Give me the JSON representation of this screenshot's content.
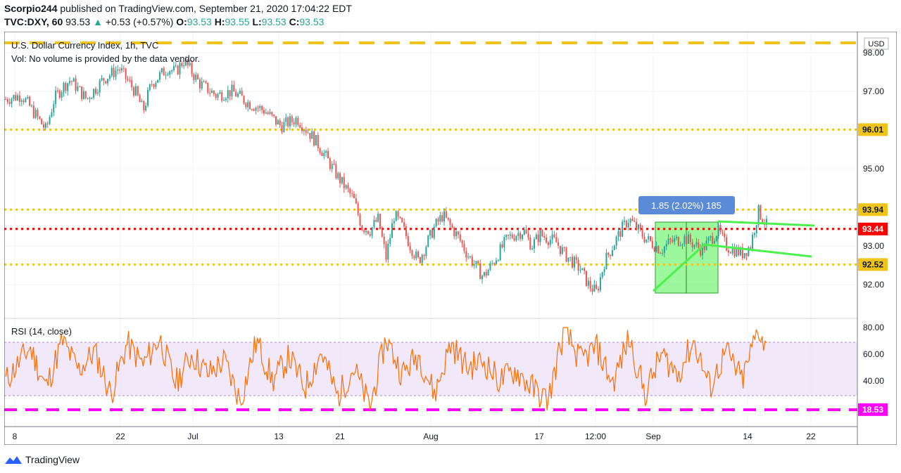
{
  "header": {
    "author": "Scorpio244",
    "published_text": "published on TradingView.com, September 21, 2020 17:04:22 EDT",
    "symbol_line": "TVC:DXY, 60",
    "last": "93.53",
    "change": "+0.53 (+0.57%)",
    "o_label": "O:",
    "o": "93.53",
    "h_label": "H:",
    "h": "93.55",
    "l_label": "L:",
    "l": "93.53",
    "c_label": "C:",
    "c": "93.53"
  },
  "legend": {
    "title": "U.S. Dollar Currency Index, 1h, TVC",
    "vol": "Vol: No volume is provided by the data vendor.",
    "rsi": "RSI (14, close)"
  },
  "currency_badge": "USD",
  "measure_label": "1.85 (2.02%) 185",
  "footer": {
    "brand": "TradingView"
  },
  "colors": {
    "candle_up": "#26a69a",
    "candle_down": "#ef5350",
    "yellow_level": "#f0c419",
    "red_level": "#ff0000",
    "green_trend": "#4cf04c",
    "rsi_line": "#ff6d00",
    "rsi_band": "#e6d6f5",
    "magenta": "#ff00ff"
  },
  "chart_data": [
    {
      "type": "line",
      "title": "U.S. Dollar Currency Index, 1h, TVC",
      "ylim": [
        91.6,
        98.5
      ],
      "y_ticks": [
        98.0,
        97.0,
        95.0,
        93.0,
        92.0
      ],
      "x_tick_labels": [
        "8",
        "22",
        "Jul",
        "13",
        "21",
        "Aug",
        "17",
        "12:00",
        "Sep",
        "14",
        "22"
      ],
      "levels": [
        {
          "value": 98.5,
          "label": "",
          "style": "dashed",
          "color": "yellow"
        },
        {
          "value": 96.01,
          "label": "96.01",
          "style": "dotted",
          "color": "yellow"
        },
        {
          "value": 93.94,
          "label": "93.94",
          "style": "dotted",
          "color": "yellow"
        },
        {
          "value": 93.44,
          "label": "93.44",
          "style": "dotted",
          "color": "red"
        },
        {
          "value": 92.52,
          "label": "92.52",
          "style": "dotted",
          "color": "yellow"
        }
      ],
      "series": [
        {
          "x": [
            0,
            0.02,
            0.04,
            0.05,
            0.06,
            0.07,
            0.08,
            0.1,
            0.12,
            0.14,
            0.16,
            0.17,
            0.18,
            0.2,
            0.21,
            0.22,
            0.24,
            0.26,
            0.28,
            0.3,
            0.32,
            0.34,
            0.36,
            0.38,
            0.39,
            0.41,
            0.43,
            0.44,
            0.45,
            0.46,
            0.47,
            0.48,
            0.49,
            0.5,
            0.51,
            0.53,
            0.54,
            0.56,
            0.57,
            0.59,
            0.6,
            0.62,
            0.64,
            0.65,
            0.66,
            0.68,
            0.69,
            0.71,
            0.72,
            0.73,
            0.74,
            0.75,
            0.76,
            0.77,
            0.79,
            0.81,
            0.82,
            0.84,
            0.86,
            0.88,
            0.89,
            0.9,
            0.91,
            0.92,
            0.93,
            0.94
          ],
          "y": [
            96.8,
            96.9,
            96.3,
            96.0,
            96.8,
            97.1,
            97.3,
            96.8,
            97.3,
            97.6,
            97.0,
            96.5,
            97.2,
            97.6,
            97.5,
            97.8,
            97.2,
            96.9,
            97.0,
            96.7,
            96.5,
            96.1,
            96.3,
            95.8,
            95.5,
            94.8,
            94.2,
            93.5,
            93.4,
            93.7,
            92.7,
            93.8,
            93.5,
            93.0,
            92.6,
            93.5,
            93.8,
            93.2,
            92.8,
            92.2,
            92.5,
            93.2,
            93.4,
            93.0,
            93.3,
            93.1,
            92.8,
            92.4,
            92.0,
            91.8,
            92.6,
            93.0,
            93.4,
            93.7,
            93.2,
            92.9,
            93.1,
            93.2,
            92.9,
            93.4,
            93.0,
            92.9,
            92.8,
            93.0,
            93.9,
            93.53
          ]
        }
      ]
    },
    {
      "type": "line",
      "title": "RSI (14, close)",
      "ylim": [
        15,
        82
      ],
      "y_ticks": [
        80.0,
        60.0,
        40.0
      ],
      "band": [
        30,
        70
      ],
      "levels": [
        {
          "value": 18.53,
          "label": "18.53",
          "style": "dashed",
          "color": "magenta"
        }
      ],
      "series": [
        {
          "x": [
            0,
            0.03,
            0.05,
            0.07,
            0.09,
            0.11,
            0.13,
            0.15,
            0.17,
            0.19,
            0.21,
            0.23,
            0.25,
            0.27,
            0.29,
            0.31,
            0.33,
            0.35,
            0.37,
            0.39,
            0.41,
            0.43,
            0.45,
            0.47,
            0.49,
            0.51,
            0.53,
            0.55,
            0.57,
            0.59,
            0.61,
            0.63,
            0.65,
            0.67,
            0.69,
            0.71,
            0.73,
            0.75,
            0.77,
            0.79,
            0.81,
            0.83,
            0.85,
            0.87,
            0.89,
            0.91,
            0.93,
            0.94
          ],
          "y": [
            40,
            65,
            35,
            70,
            48,
            62,
            30,
            68,
            52,
            72,
            38,
            60,
            45,
            55,
            25,
            70,
            40,
            58,
            35,
            62,
            28,
            50,
            20,
            72,
            45,
            60,
            30,
            68,
            50,
            55,
            40,
            48,
            35,
            25,
            78,
            55,
            65,
            38,
            72,
            30,
            60,
            45,
            70,
            35,
            62,
            40,
            80,
            63
          ]
        }
      ]
    }
  ]
}
